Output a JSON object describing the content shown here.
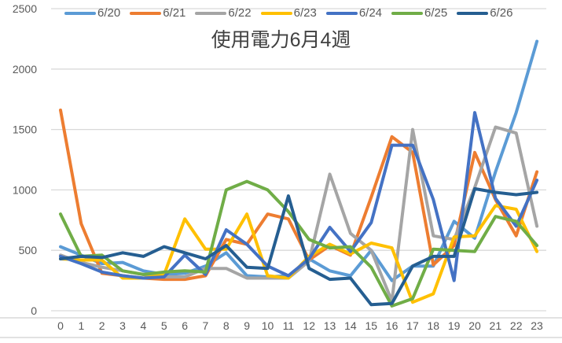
{
  "chart_data": {
    "type": "line",
    "title": "使用電力6月4週",
    "xlabel": "",
    "ylabel": "",
    "ylim": [
      0,
      2500
    ],
    "yticks": [
      0,
      500,
      1000,
      1500,
      2000,
      2500
    ],
    "grid": true,
    "legend_position": "top",
    "x": [
      0,
      1,
      2,
      3,
      4,
      5,
      6,
      7,
      8,
      9,
      10,
      11,
      12,
      13,
      14,
      15,
      16,
      17,
      18,
      19,
      20,
      21,
      22,
      23
    ],
    "series": [
      {
        "name": "6/20",
        "color": "#5B9BD5",
        "values": [
          530,
          460,
          390,
          400,
          330,
          300,
          310,
          370,
          480,
          290,
          280,
          290,
          430,
          330,
          290,
          500,
          250,
          370,
          370,
          740,
          600,
          1150,
          1640,
          2230
        ]
      },
      {
        "name": "6/21",
        "color": "#ED7D31",
        "values": [
          1660,
          720,
          310,
          290,
          270,
          260,
          260,
          290,
          590,
          550,
          800,
          760,
          420,
          540,
          460,
          940,
          1440,
          1310,
          380,
          540,
          1310,
          920,
          620,
          1150
        ]
      },
      {
        "name": "6/22",
        "color": "#A5A5A5",
        "values": [
          460,
          400,
          360,
          330,
          300,
          280,
          280,
          350,
          350,
          270,
          270,
          270,
          410,
          1130,
          640,
          500,
          80,
          1500,
          620,
          590,
          1020,
          1520,
          1470,
          700
        ]
      },
      {
        "name": "6/23",
        "color": "#FFC000",
        "values": [
          430,
          420,
          420,
          270,
          270,
          300,
          760,
          510,
          510,
          800,
          290,
          270,
          450,
          550,
          470,
          560,
          520,
          70,
          140,
          610,
          620,
          870,
          840,
          490
        ]
      },
      {
        "name": "6/24",
        "color": "#4472C4",
        "values": [
          450,
          390,
          320,
          290,
          270,
          280,
          460,
          300,
          670,
          550,
          370,
          290,
          430,
          690,
          490,
          730,
          1370,
          1370,
          920,
          250,
          1640,
          930,
          700,
          1080
        ]
      },
      {
        "name": "6/25",
        "color": "#70AD47",
        "values": [
          800,
          450,
          460,
          330,
          300,
          320,
          330,
          320,
          1000,
          1070,
          1000,
          820,
          590,
          520,
          530,
          360,
          40,
          100,
          510,
          500,
          490,
          780,
          740,
          540
        ]
      },
      {
        "name": "6/26",
        "color": "#255E91",
        "values": [
          430,
          450,
          440,
          480,
          450,
          530,
          480,
          430,
          540,
          360,
          350,
          950,
          350,
          260,
          270,
          50,
          60,
          370,
          450,
          450,
          1010,
          980,
          960,
          980
        ]
      }
    ]
  }
}
